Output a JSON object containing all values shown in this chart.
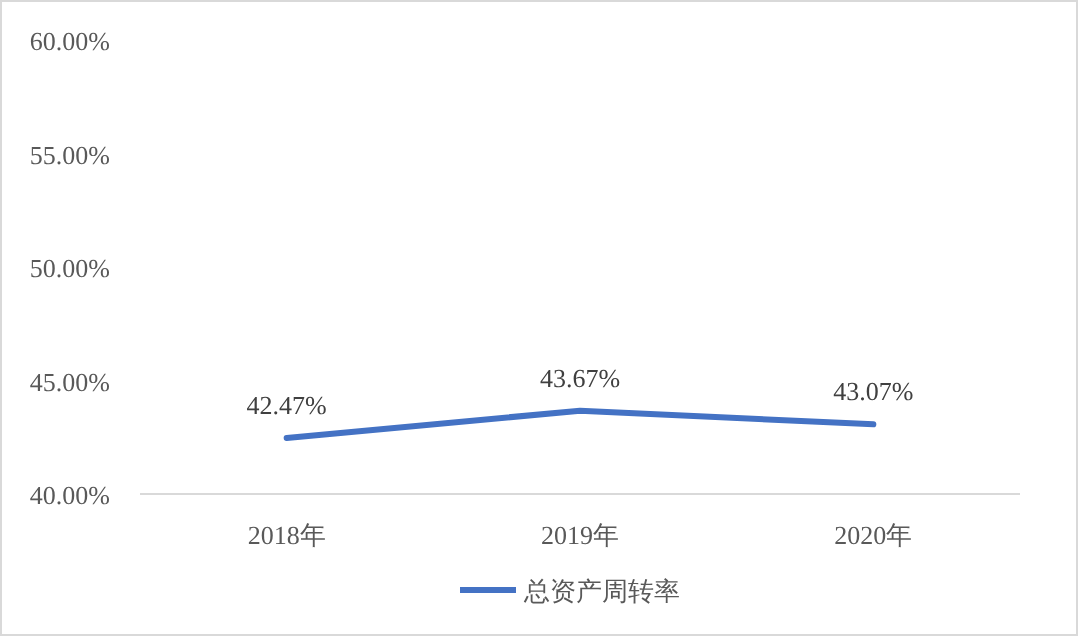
{
  "chart_data": {
    "type": "line",
    "categories": [
      "2018年",
      "2019年",
      "2020年"
    ],
    "series": [
      {
        "name": "总资产周转率",
        "color": "#4472c4",
        "values": [
          42.47,
          43.67,
          43.07
        ],
        "value_labels": [
          "42.47%",
          "43.67%",
          "43.07%"
        ]
      }
    ],
    "ylim": [
      40,
      60
    ],
    "yticks": [
      {
        "value": 40,
        "label": "40.00%"
      },
      {
        "value": 45,
        "label": "45.00%"
      },
      {
        "value": 50,
        "label": "50.00%"
      },
      {
        "value": 55,
        "label": "55.00%"
      },
      {
        "value": 60,
        "label": "60.00%"
      }
    ],
    "grid": false,
    "legend": "bottom",
    "marker": "none",
    "line_style": "solid"
  }
}
